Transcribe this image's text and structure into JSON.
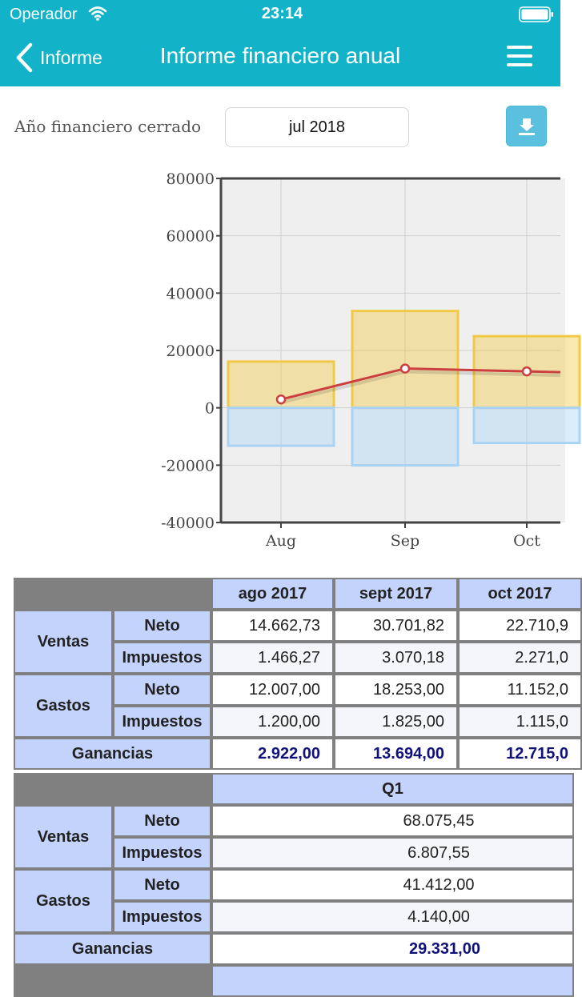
{
  "status_bar": {
    "carrier": "Operador",
    "time": "23:14"
  },
  "nav": {
    "back_label": "Informe",
    "title": "Informe financiero anual"
  },
  "controls": {
    "year_label": "Año financiero cerrado",
    "year_value": "jul 2018"
  },
  "colors": {
    "header_bg": "#12b3c8",
    "income_bar": "#f0ca46",
    "expense_bar": "#a9d3f5",
    "profit_line": "#cc3f3f",
    "table_header": "#c3d3fb",
    "profit_text": "#11117a"
  },
  "chart_data": {
    "type": "bar",
    "categories": [
      "Aug",
      "Sep",
      "Oct"
    ],
    "series": [
      {
        "name": "Ventas (Neto)",
        "type": "bar",
        "values": [
          16129,
          33772,
          24982
        ]
      },
      {
        "name": "Gastos (Neto)",
        "type": "bar",
        "values": [
          -13207,
          -20078,
          -12267
        ]
      },
      {
        "name": "Ganancias",
        "type": "line",
        "values": [
          2922,
          13694,
          12715
        ]
      }
    ],
    "y_ticks": [
      "80000",
      "60000",
      "40000",
      "20000",
      "0",
      "-20000",
      "-40000"
    ],
    "ylim": [
      -40000,
      80000
    ],
    "grid": true
  },
  "monthly_table": {
    "columns": [
      "ago 2017",
      "sept 2017",
      "oct 2017"
    ],
    "sales_label": "Ventas",
    "expenses_label": "Gastos",
    "net_label": "Neto",
    "tax_label": "Impuestos",
    "profit_label": "Ganancias",
    "sales_net": [
      "14.662,73",
      "30.701,82",
      "22.710,9"
    ],
    "sales_tax": [
      "1.466,27",
      "3.070,18",
      "2.271,0"
    ],
    "expenses_net": [
      "12.007,00",
      "18.253,00",
      "11.152,0"
    ],
    "expenses_tax": [
      "1.200,00",
      "1.825,00",
      "1.115,0"
    ],
    "profit": [
      "2.922,00",
      "13.694,00",
      "12.715,0"
    ]
  },
  "quarter_table": {
    "column": "Q1",
    "sales_label": "Ventas",
    "expenses_label": "Gastos",
    "net_label": "Neto",
    "tax_label": "Impuestos",
    "profit_label": "Ganancias",
    "sales_net": "68.075,45",
    "sales_tax": "6.807,55",
    "expenses_net": "41.412,00",
    "expenses_tax": "4.140,00",
    "profit": "29.331,00"
  }
}
